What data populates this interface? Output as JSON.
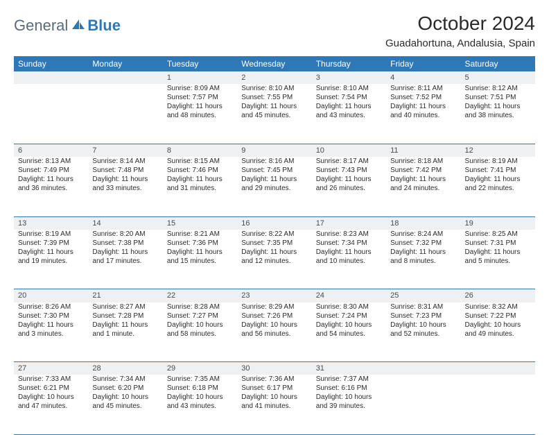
{
  "brand": {
    "text1": "General",
    "text2": "Blue"
  },
  "title": "October 2024",
  "location": "Guadahortuna, Andalusia, Spain",
  "colors": {
    "header_bg": "#2f78b7",
    "header_fg": "#ffffff",
    "daynum_bg": "#eef0f2",
    "border": "#2f78b7",
    "text": "#2a2a2a"
  },
  "day_headers": [
    "Sunday",
    "Monday",
    "Tuesday",
    "Wednesday",
    "Thursday",
    "Friday",
    "Saturday"
  ],
  "weeks": [
    {
      "nums": [
        "",
        "",
        "1",
        "2",
        "3",
        "4",
        "5"
      ],
      "cells": [
        null,
        null,
        {
          "sunrise": "Sunrise: 8:09 AM",
          "sunset": "Sunset: 7:57 PM",
          "daylight": "Daylight: 11 hours and 48 minutes."
        },
        {
          "sunrise": "Sunrise: 8:10 AM",
          "sunset": "Sunset: 7:55 PM",
          "daylight": "Daylight: 11 hours and 45 minutes."
        },
        {
          "sunrise": "Sunrise: 8:10 AM",
          "sunset": "Sunset: 7:54 PM",
          "daylight": "Daylight: 11 hours and 43 minutes."
        },
        {
          "sunrise": "Sunrise: 8:11 AM",
          "sunset": "Sunset: 7:52 PM",
          "daylight": "Daylight: 11 hours and 40 minutes."
        },
        {
          "sunrise": "Sunrise: 8:12 AM",
          "sunset": "Sunset: 7:51 PM",
          "daylight": "Daylight: 11 hours and 38 minutes."
        }
      ]
    },
    {
      "nums": [
        "6",
        "7",
        "8",
        "9",
        "10",
        "11",
        "12"
      ],
      "cells": [
        {
          "sunrise": "Sunrise: 8:13 AM",
          "sunset": "Sunset: 7:49 PM",
          "daylight": "Daylight: 11 hours and 36 minutes."
        },
        {
          "sunrise": "Sunrise: 8:14 AM",
          "sunset": "Sunset: 7:48 PM",
          "daylight": "Daylight: 11 hours and 33 minutes."
        },
        {
          "sunrise": "Sunrise: 8:15 AM",
          "sunset": "Sunset: 7:46 PM",
          "daylight": "Daylight: 11 hours and 31 minutes."
        },
        {
          "sunrise": "Sunrise: 8:16 AM",
          "sunset": "Sunset: 7:45 PM",
          "daylight": "Daylight: 11 hours and 29 minutes."
        },
        {
          "sunrise": "Sunrise: 8:17 AM",
          "sunset": "Sunset: 7:43 PM",
          "daylight": "Daylight: 11 hours and 26 minutes."
        },
        {
          "sunrise": "Sunrise: 8:18 AM",
          "sunset": "Sunset: 7:42 PM",
          "daylight": "Daylight: 11 hours and 24 minutes."
        },
        {
          "sunrise": "Sunrise: 8:19 AM",
          "sunset": "Sunset: 7:41 PM",
          "daylight": "Daylight: 11 hours and 22 minutes."
        }
      ]
    },
    {
      "nums": [
        "13",
        "14",
        "15",
        "16",
        "17",
        "18",
        "19"
      ],
      "cells": [
        {
          "sunrise": "Sunrise: 8:19 AM",
          "sunset": "Sunset: 7:39 PM",
          "daylight": "Daylight: 11 hours and 19 minutes."
        },
        {
          "sunrise": "Sunrise: 8:20 AM",
          "sunset": "Sunset: 7:38 PM",
          "daylight": "Daylight: 11 hours and 17 minutes."
        },
        {
          "sunrise": "Sunrise: 8:21 AM",
          "sunset": "Sunset: 7:36 PM",
          "daylight": "Daylight: 11 hours and 15 minutes."
        },
        {
          "sunrise": "Sunrise: 8:22 AM",
          "sunset": "Sunset: 7:35 PM",
          "daylight": "Daylight: 11 hours and 12 minutes."
        },
        {
          "sunrise": "Sunrise: 8:23 AM",
          "sunset": "Sunset: 7:34 PM",
          "daylight": "Daylight: 11 hours and 10 minutes."
        },
        {
          "sunrise": "Sunrise: 8:24 AM",
          "sunset": "Sunset: 7:32 PM",
          "daylight": "Daylight: 11 hours and 8 minutes."
        },
        {
          "sunrise": "Sunrise: 8:25 AM",
          "sunset": "Sunset: 7:31 PM",
          "daylight": "Daylight: 11 hours and 5 minutes."
        }
      ]
    },
    {
      "nums": [
        "20",
        "21",
        "22",
        "23",
        "24",
        "25",
        "26"
      ],
      "cells": [
        {
          "sunrise": "Sunrise: 8:26 AM",
          "sunset": "Sunset: 7:30 PM",
          "daylight": "Daylight: 11 hours and 3 minutes."
        },
        {
          "sunrise": "Sunrise: 8:27 AM",
          "sunset": "Sunset: 7:28 PM",
          "daylight": "Daylight: 11 hours and 1 minute."
        },
        {
          "sunrise": "Sunrise: 8:28 AM",
          "sunset": "Sunset: 7:27 PM",
          "daylight": "Daylight: 10 hours and 58 minutes."
        },
        {
          "sunrise": "Sunrise: 8:29 AM",
          "sunset": "Sunset: 7:26 PM",
          "daylight": "Daylight: 10 hours and 56 minutes."
        },
        {
          "sunrise": "Sunrise: 8:30 AM",
          "sunset": "Sunset: 7:24 PM",
          "daylight": "Daylight: 10 hours and 54 minutes."
        },
        {
          "sunrise": "Sunrise: 8:31 AM",
          "sunset": "Sunset: 7:23 PM",
          "daylight": "Daylight: 10 hours and 52 minutes."
        },
        {
          "sunrise": "Sunrise: 8:32 AM",
          "sunset": "Sunset: 7:22 PM",
          "daylight": "Daylight: 10 hours and 49 minutes."
        }
      ]
    },
    {
      "nums": [
        "27",
        "28",
        "29",
        "30",
        "31",
        "",
        ""
      ],
      "cells": [
        {
          "sunrise": "Sunrise: 7:33 AM",
          "sunset": "Sunset: 6:21 PM",
          "daylight": "Daylight: 10 hours and 47 minutes."
        },
        {
          "sunrise": "Sunrise: 7:34 AM",
          "sunset": "Sunset: 6:20 PM",
          "daylight": "Daylight: 10 hours and 45 minutes."
        },
        {
          "sunrise": "Sunrise: 7:35 AM",
          "sunset": "Sunset: 6:18 PM",
          "daylight": "Daylight: 10 hours and 43 minutes."
        },
        {
          "sunrise": "Sunrise: 7:36 AM",
          "sunset": "Sunset: 6:17 PM",
          "daylight": "Daylight: 10 hours and 41 minutes."
        },
        {
          "sunrise": "Sunrise: 7:37 AM",
          "sunset": "Sunset: 6:16 PM",
          "daylight": "Daylight: 10 hours and 39 minutes."
        },
        null,
        null
      ]
    }
  ]
}
